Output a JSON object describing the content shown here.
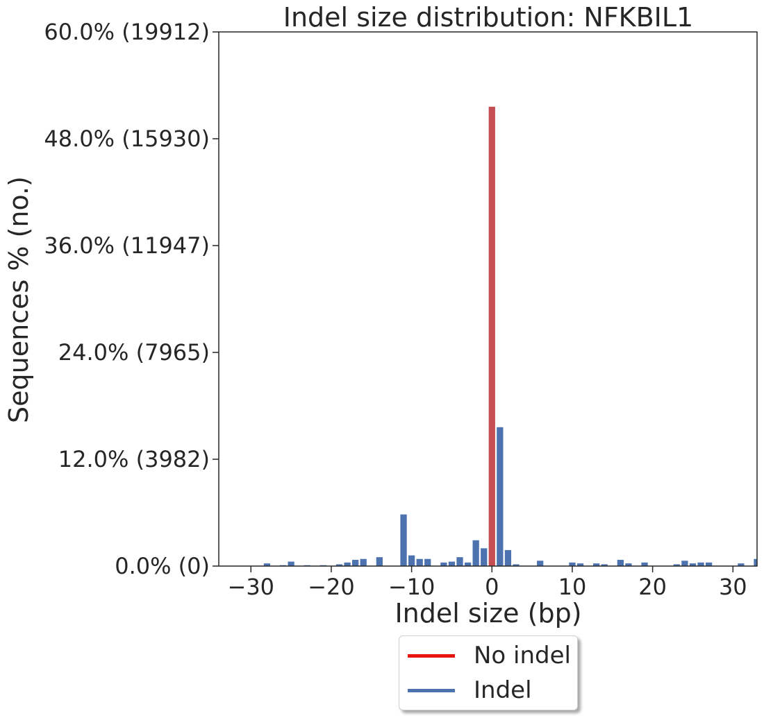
{
  "chart_data": {
    "type": "bar",
    "title": "Indel size distribution: NFKBIL1",
    "xlabel": "Indel size (bp)",
    "ylabel": "Sequences % (no.)",
    "xlim": [
      -34,
      33
    ],
    "ylim": [
      0,
      60
    ],
    "x_ticks": [
      -30,
      -20,
      -10,
      0,
      10,
      20,
      30
    ],
    "x_tick_labels": [
      "−30",
      "−20",
      "−10",
      "0",
      "10",
      "20",
      "30"
    ],
    "y_ticks": [
      0,
      12,
      24,
      36,
      48,
      60
    ],
    "y_tick_labels": [
      "0.0% (0)",
      "12.0% (3982)",
      "24.0% (7965)",
      "36.0% (11947)",
      "48.0% (15930)",
      "60.0% (19912)"
    ],
    "grid": false,
    "legend_position": "below",
    "series": [
      {
        "name": "No indel",
        "color": "#c44e52",
        "legend_color": "#e8150f",
        "x": [
          0
        ],
        "values": [
          51.6
        ]
      },
      {
        "name": "Indel",
        "color": "#4c72b0",
        "legend_color": "#4c72b0",
        "x": [
          -28,
          -26,
          -25,
          -23,
          -21,
          -19,
          -18,
          -17,
          -16,
          -14,
          -11,
          -10,
          -9,
          -8,
          -6,
          -5,
          -4,
          -3,
          -2,
          -1,
          1,
          2,
          3,
          6,
          10,
          11,
          13,
          14,
          16,
          17,
          19,
          23,
          24,
          25,
          26,
          27,
          31,
          33
        ],
        "values": [
          0.3,
          0.1,
          0.5,
          0.1,
          0.1,
          0.2,
          0.4,
          0.7,
          0.8,
          1.0,
          5.8,
          1.2,
          0.8,
          0.8,
          0.4,
          0.5,
          1.0,
          0.4,
          2.9,
          2.0,
          15.6,
          1.8,
          0.2,
          0.6,
          0.4,
          0.3,
          0.3,
          0.2,
          0.7,
          0.3,
          0.4,
          0.2,
          0.6,
          0.3,
          0.4,
          0.4,
          0.3,
          0.8
        ]
      }
    ]
  }
}
